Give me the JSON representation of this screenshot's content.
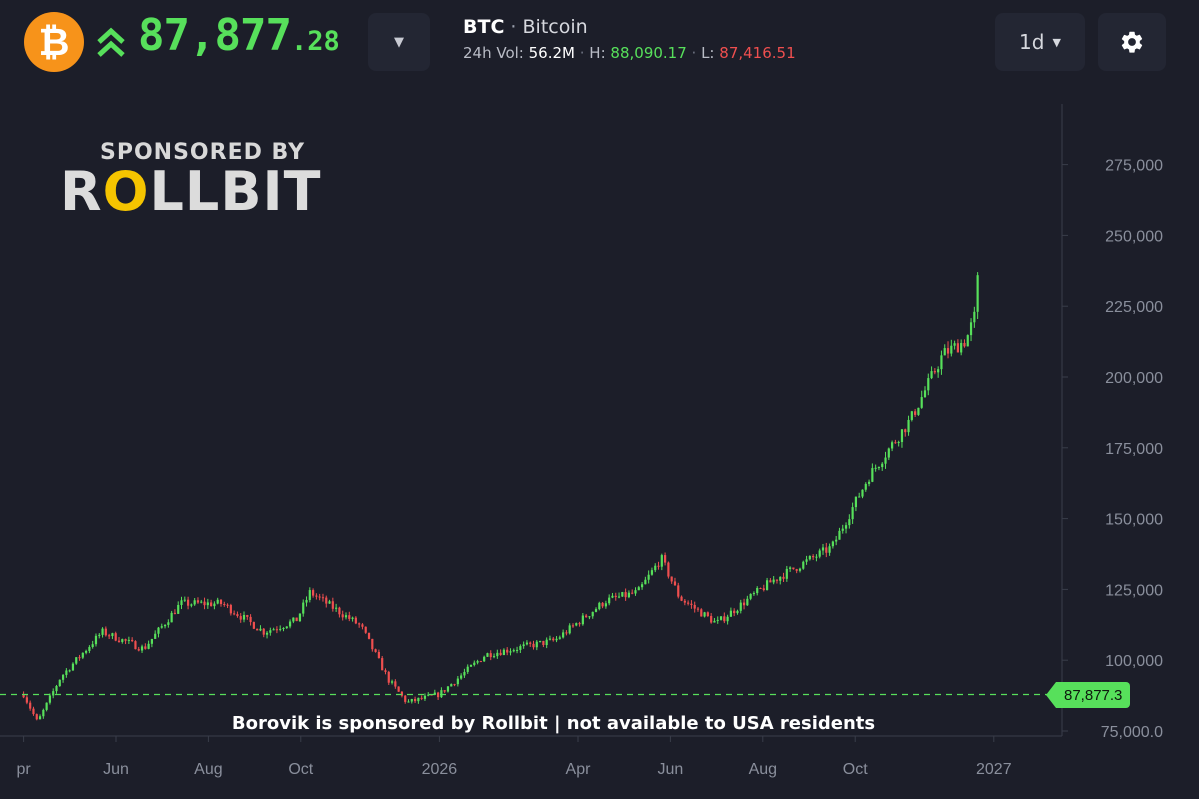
{
  "header": {
    "coin_symbol_glyph": "₿",
    "price_int": "87,877",
    "price_dec": ".28",
    "ticker": "BTC",
    "name": "Bitcoin",
    "vol_label": "24h Vol:",
    "vol_value": "56.2M",
    "high_label": "H:",
    "high_value": "88,090.17",
    "low_label": "L:",
    "low_value": "87,416.51",
    "timeframe": "1d",
    "colors": {
      "up": "#57e05b",
      "down": "#ef4f4f",
      "coin": "#f7931a"
    }
  },
  "sponsor": {
    "line1": "SPONSORED BY",
    "brand_pre": "R",
    "brand_o": "O",
    "brand_post": "LLBIT",
    "disclaimer": "Borovik is sponsored by Rollbit | not available to USA residents"
  },
  "chart_data": {
    "type": "candlestick",
    "x_ticks": [
      {
        "label": "pr",
        "month": 0
      },
      {
        "label": "Jun",
        "month": 2
      },
      {
        "label": "Aug",
        "month": 4
      },
      {
        "label": "Oct",
        "month": 6
      },
      {
        "label": "2026",
        "month": 9
      },
      {
        "label": "Apr",
        "month": 12
      },
      {
        "label": "Jun",
        "month": 14
      },
      {
        "label": "Aug",
        "month": 16
      },
      {
        "label": "Oct",
        "month": 18
      },
      {
        "label": "2027",
        "month": 21
      }
    ],
    "y_ticks": [
      "75,000.0",
      "100,000",
      "125,000",
      "150,000",
      "175,000",
      "200,000",
      "225,000",
      "250,000",
      "275,000"
    ],
    "ylim": [
      75000,
      290000
    ],
    "current_price_label": "87,877.3",
    "current_price": 87877.3,
    "trend_keypoints": [
      {
        "month": 0.0,
        "close": 88000
      },
      {
        "month": 0.3,
        "close": 78000
      },
      {
        "month": 0.8,
        "close": 94000
      },
      {
        "month": 1.7,
        "close": 110000
      },
      {
        "month": 2.6,
        "close": 104000
      },
      {
        "month": 3.4,
        "close": 120000
      },
      {
        "month": 4.3,
        "close": 120000
      },
      {
        "month": 5.2,
        "close": 110000
      },
      {
        "month": 5.9,
        "close": 114000
      },
      {
        "month": 6.2,
        "close": 124000
      },
      {
        "month": 7.3,
        "close": 112000
      },
      {
        "month": 7.9,
        "close": 93000
      },
      {
        "month": 8.3,
        "close": 85000
      },
      {
        "month": 9.0,
        "close": 88000
      },
      {
        "month": 10.0,
        "close": 102000
      },
      {
        "month": 11.5,
        "close": 107000
      },
      {
        "month": 12.6,
        "close": 121000
      },
      {
        "month": 13.3,
        "close": 124000
      },
      {
        "month": 13.8,
        "close": 136000
      },
      {
        "month": 14.2,
        "close": 122000
      },
      {
        "month": 15.0,
        "close": 113000
      },
      {
        "month": 16.2,
        "close": 128000
      },
      {
        "month": 17.5,
        "close": 140000
      },
      {
        "month": 18.3,
        "close": 165000
      },
      {
        "month": 19.2,
        "close": 185000
      },
      {
        "month": 19.9,
        "close": 208000
      },
      {
        "month": 20.4,
        "close": 213000
      },
      {
        "month": 20.6,
        "close": 222000
      },
      {
        "month": 20.65,
        "close": 234000
      }
    ]
  }
}
